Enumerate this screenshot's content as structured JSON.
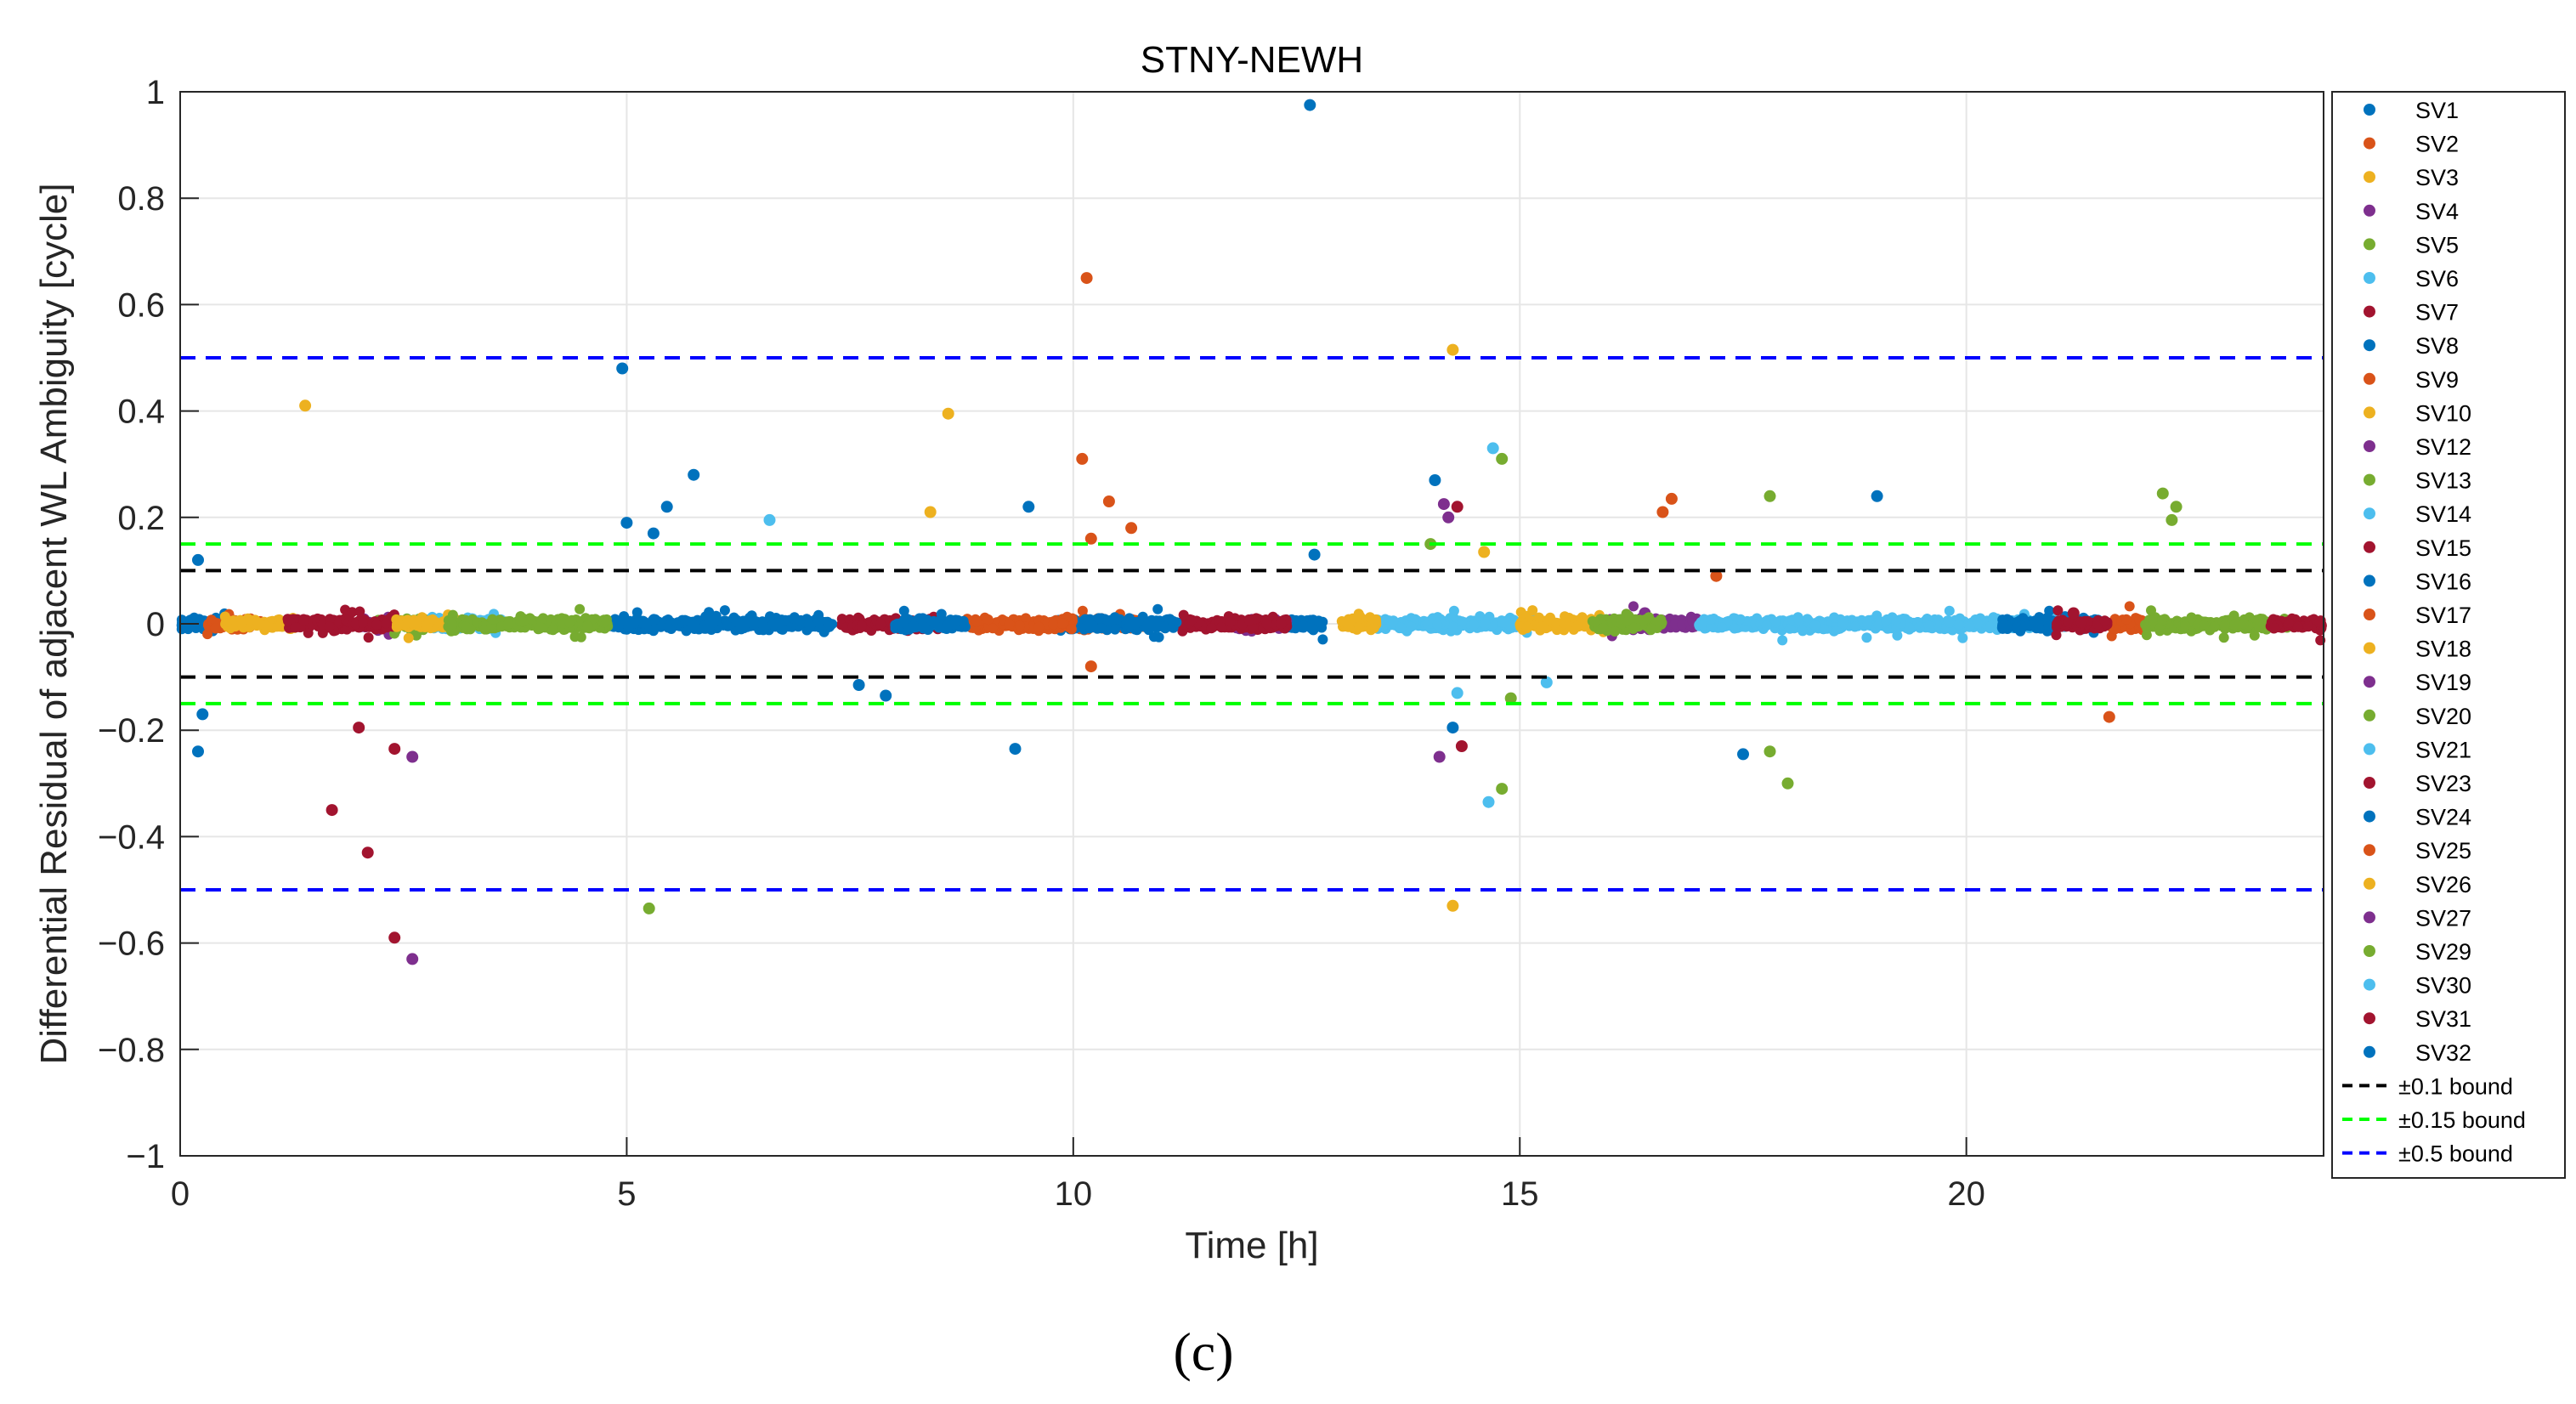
{
  "chart_data": {
    "type": "scatter",
    "title": "STNY-NEWH",
    "xlabel": "Time [h]",
    "ylabel": "Differential Residual of adjacent WL Ambiguity [cycle]",
    "xlim": [
      0,
      24
    ],
    "ylim": [
      -1,
      1
    ],
    "xticks": [
      0,
      5,
      10,
      15,
      20
    ],
    "yticks": [
      -1,
      -0.8,
      -0.6,
      -0.4,
      -0.2,
      0,
      0.2,
      0.4,
      0.6,
      0.8,
      1
    ],
    "xtick_labels": [
      "0",
      "5",
      "10",
      "15",
      "20"
    ],
    "ytick_labels": [
      "−1",
      "−0.8",
      "−0.6",
      "−0.4",
      "−0.2",
      "0",
      "0.2",
      "0.4",
      "0.6",
      "0.8",
      "1"
    ],
    "grid": true,
    "legend_position": "outside-right",
    "caption": "(c)",
    "series": [
      {
        "name": "SV1",
        "color": "#0072BD",
        "spans": [
          [
            0.0,
            0.5
          ],
          [
            12.4,
            12.8
          ]
        ],
        "outliers": [
          [
            0.2,
            0.12
          ],
          [
            0.25,
            -0.17
          ],
          [
            12.65,
            0.975
          ],
          [
            12.7,
            0.13
          ]
        ]
      },
      {
        "name": "SV2",
        "color": "#D95319",
        "spans": [
          [
            0.3,
            0.9
          ]
        ],
        "outliers": [
          [
            10.15,
            0.65
          ]
        ]
      },
      {
        "name": "SV3",
        "color": "#EDB120",
        "spans": [
          [
            0.5,
            1.3
          ]
        ],
        "outliers": [
          [
            1.4,
            0.41
          ]
        ]
      },
      {
        "name": "SV4",
        "color": "#7E2F8E",
        "spans": [
          [
            2.0,
            2.4
          ]
        ],
        "outliers": [
          [
            2.6,
            -0.25
          ],
          [
            2.6,
            -0.63
          ]
        ]
      },
      {
        "name": "SV5",
        "color": "#77AC30",
        "spans": [
          [
            2.2,
            2.8
          ]
        ],
        "outliers": [
          [
            5.25,
            -0.535
          ]
        ]
      },
      {
        "name": "SV6",
        "color": "#4DBEEE",
        "spans": [
          [
            2.8,
            3.6
          ]
        ],
        "outliers": [
          [
            6.6,
            0.195
          ]
        ]
      },
      {
        "name": "SV7",
        "color": "#A2142F",
        "spans": [
          [
            1.2,
            2.4
          ]
        ],
        "outliers": [
          [
            1.7,
            -0.35
          ],
          [
            2.1,
            -0.43
          ],
          [
            2.4,
            -0.59
          ],
          [
            2.4,
            -0.235
          ],
          [
            2.0,
            -0.195
          ]
        ]
      },
      {
        "name": "SV8",
        "color": "#0072BD",
        "spans": [
          [
            4.8,
            5.9
          ]
        ],
        "outliers": [
          [
            4.95,
            0.48
          ],
          [
            5.0,
            0.19
          ],
          [
            5.45,
            0.22
          ],
          [
            5.75,
            0.28
          ],
          [
            5.3,
            0.17
          ]
        ]
      },
      {
        "name": "SV9",
        "color": "#D95319",
        "spans": [
          [
            10.0,
            10.8
          ]
        ],
        "outliers": [
          [
            10.1,
            0.31
          ],
          [
            10.4,
            0.23
          ],
          [
            10.2,
            0.16
          ],
          [
            10.65,
            0.18
          ],
          [
            10.2,
            -0.08
          ]
        ]
      },
      {
        "name": "SV10",
        "color": "#EDB120",
        "spans": [
          [
            2.4,
            3.1
          ]
        ],
        "outliers": [
          [
            8.6,
            0.395
          ],
          [
            8.4,
            0.21
          ]
        ]
      },
      {
        "name": "SV12",
        "color": "#7E2F8E",
        "spans": [
          [
            16.4,
            17.0
          ]
        ],
        "outliers": [
          [
            14.15,
            0.225
          ]
        ]
      },
      {
        "name": "SV13",
        "color": "#77AC30",
        "spans": [
          [
            3.0,
            4.8
          ]
        ],
        "outliers": [
          [
            14.8,
            0.31
          ],
          [
            14.0,
            0.15
          ]
        ]
      },
      {
        "name": "SV14",
        "color": "#4DBEEE",
        "spans": [
          [
            13.4,
            15.2
          ]
        ],
        "outliers": [
          [
            14.7,
            0.33
          ]
        ]
      },
      {
        "name": "SV15",
        "color": "#A2142F",
        "spans": [
          [
            7.4,
            8.5
          ]
        ],
        "outliers": [
          [
            14.3,
            0.22
          ]
        ]
      },
      {
        "name": "SV16",
        "color": "#0072BD",
        "spans": [
          [
            5.9,
            7.3
          ]
        ],
        "outliers": [
          [
            9.5,
            0.22
          ],
          [
            14.05,
            0.27
          ],
          [
            19.0,
            0.24
          ],
          [
            9.35,
            -0.235
          ]
        ]
      },
      {
        "name": "SV17",
        "color": "#D95319",
        "spans": [
          [
            21.6,
            22.1
          ]
        ],
        "outliers": [
          [
            16.7,
            0.235
          ],
          [
            16.6,
            0.21
          ],
          [
            21.6,
            -0.175
          ]
        ]
      },
      {
        "name": "SV18",
        "color": "#EDB120",
        "spans": [
          [
            13.0,
            13.4
          ]
        ],
        "outliers": [
          [
            14.25,
            0.515
          ],
          [
            14.25,
            -0.53
          ]
        ]
      },
      {
        "name": "SV19",
        "color": "#7E2F8E",
        "spans": [
          [
            11.8,
            12.4
          ]
        ],
        "outliers": [
          [
            14.2,
            0.2
          ],
          [
            14.1,
            -0.25
          ]
        ]
      },
      {
        "name": "SV20",
        "color": "#77AC30",
        "spans": [
          [
            22.0,
            23.6
          ]
        ],
        "outliers": [
          [
            22.2,
            0.245
          ],
          [
            22.35,
            0.22
          ],
          [
            22.3,
            0.195
          ],
          [
            17.8,
            0.24
          ],
          [
            14.8,
            -0.31
          ],
          [
            18.0,
            -0.3
          ],
          [
            17.8,
            -0.24
          ]
        ]
      },
      {
        "name": "SV21",
        "color": "#4DBEEE",
        "spans": [
          [
            17.0,
            18.0
          ],
          [
            19.6,
            21.2
          ]
        ],
        "outliers": [
          [
            14.65,
            -0.335
          ],
          [
            14.3,
            -0.13
          ]
        ]
      },
      {
        "name": "SV23",
        "color": "#A2142F",
        "spans": [
          [
            11.2,
            12.4
          ]
        ],
        "outliers": [
          [
            14.35,
            -0.23
          ]
        ]
      },
      {
        "name": "SV24",
        "color": "#0072BD",
        "spans": [
          [
            9.8,
            11.2
          ],
          [
            20.4,
            21.5
          ]
        ],
        "outliers": [
          [
            17.5,
            -0.245
          ],
          [
            14.25,
            -0.195
          ]
        ]
      },
      {
        "name": "SV25",
        "color": "#D95319",
        "spans": [
          [
            8.8,
            10.0
          ]
        ],
        "outliers": [
          [
            17.2,
            0.09
          ]
        ]
      },
      {
        "name": "SV26",
        "color": "#EDB120",
        "spans": [
          [
            15.0,
            16.0
          ]
        ],
        "outliers": [
          [
            14.6,
            0.135
          ]
        ]
      },
      {
        "name": "SV27",
        "color": "#7E2F8E",
        "spans": [
          [
            16.0,
            16.6
          ]
        ],
        "outliers": [
          [
            16.4,
            0.02
          ]
        ]
      },
      {
        "name": "SV29",
        "color": "#77AC30",
        "spans": [
          [
            15.8,
            16.6
          ]
        ],
        "outliers": [
          [
            14.9,
            -0.14
          ]
        ]
      },
      {
        "name": "SV30",
        "color": "#4DBEEE",
        "spans": [
          [
            18.0,
            19.6
          ]
        ],
        "outliers": [
          [
            15.3,
            -0.11
          ]
        ]
      },
      {
        "name": "SV31",
        "color": "#A2142F",
        "spans": [
          [
            21.0,
            21.6
          ],
          [
            23.4,
            24.0
          ]
        ],
        "outliers": [
          [
            21.2,
            0.02
          ]
        ]
      },
      {
        "name": "SV32",
        "color": "#0072BD",
        "spans": [
          [
            8.0,
            8.8
          ]
        ],
        "outliers": [
          [
            7.9,
            -0.135
          ],
          [
            7.6,
            -0.115
          ],
          [
            0.2,
            -0.24
          ]
        ]
      }
    ],
    "reference_lines": [
      {
        "name": "±0.1 bound",
        "color": "#000000",
        "values": [
          0.1,
          -0.1
        ]
      },
      {
        "name": "±0.15 bound",
        "color": "#00FF00",
        "values": [
          0.15,
          -0.15
        ]
      },
      {
        "name": "±0.5 bound",
        "color": "#0000FF",
        "values": [
          0.5,
          -0.5
        ]
      }
    ]
  }
}
